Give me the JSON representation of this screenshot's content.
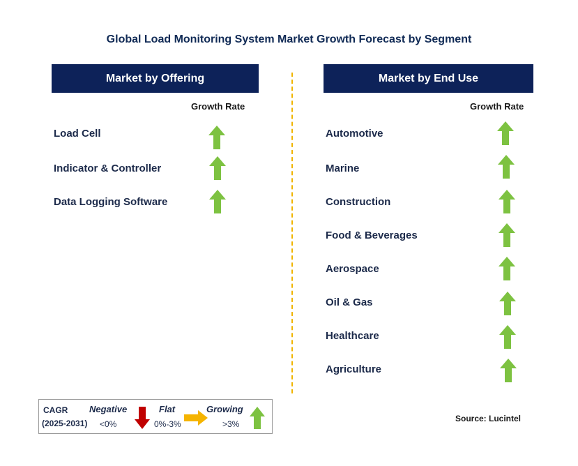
{
  "title": "Global Load Monitoring System Market Growth Forecast by Segment",
  "left_panel": {
    "header": "Market by Offering",
    "growth_rate_label": "Growth Rate",
    "items": [
      {
        "label": "Load Cell",
        "trend": "growing"
      },
      {
        "label": "Indicator & Controller",
        "trend": "growing"
      },
      {
        "label": "Data Logging Software",
        "trend": "growing"
      }
    ]
  },
  "right_panel": {
    "header": "Market by End Use",
    "growth_rate_label": "Growth Rate",
    "items": [
      {
        "label": "Automotive",
        "trend": "growing"
      },
      {
        "label": "Marine",
        "trend": "growing"
      },
      {
        "label": "Construction",
        "trend": "growing"
      },
      {
        "label": "Food & Beverages",
        "trend": "growing"
      },
      {
        "label": "Aerospace",
        "trend": "growing"
      },
      {
        "label": "Oil & Gas",
        "trend": "growing"
      },
      {
        "label": "Healthcare",
        "trend": "growing"
      },
      {
        "label": "Agriculture",
        "trend": "growing"
      }
    ]
  },
  "legend": {
    "cagr_label": "CAGR",
    "period": "(2025-2031)",
    "negative": {
      "label": "Negative",
      "range": "<0%",
      "icon": "red-down-arrow-icon"
    },
    "flat": {
      "label": "Flat",
      "range": "0%-3%",
      "icon": "orange-right-arrow-icon"
    },
    "growing": {
      "label": "Growing",
      "range": ">3%",
      "icon": "green-up-arrow-icon"
    }
  },
  "source": "Source: Lucintel",
  "colors": {
    "header_bg": "#0d2259",
    "arrow_up": "#7dc241",
    "arrow_down": "#c00000",
    "arrow_flat": "#f5b400",
    "divider": "#f0b400"
  }
}
